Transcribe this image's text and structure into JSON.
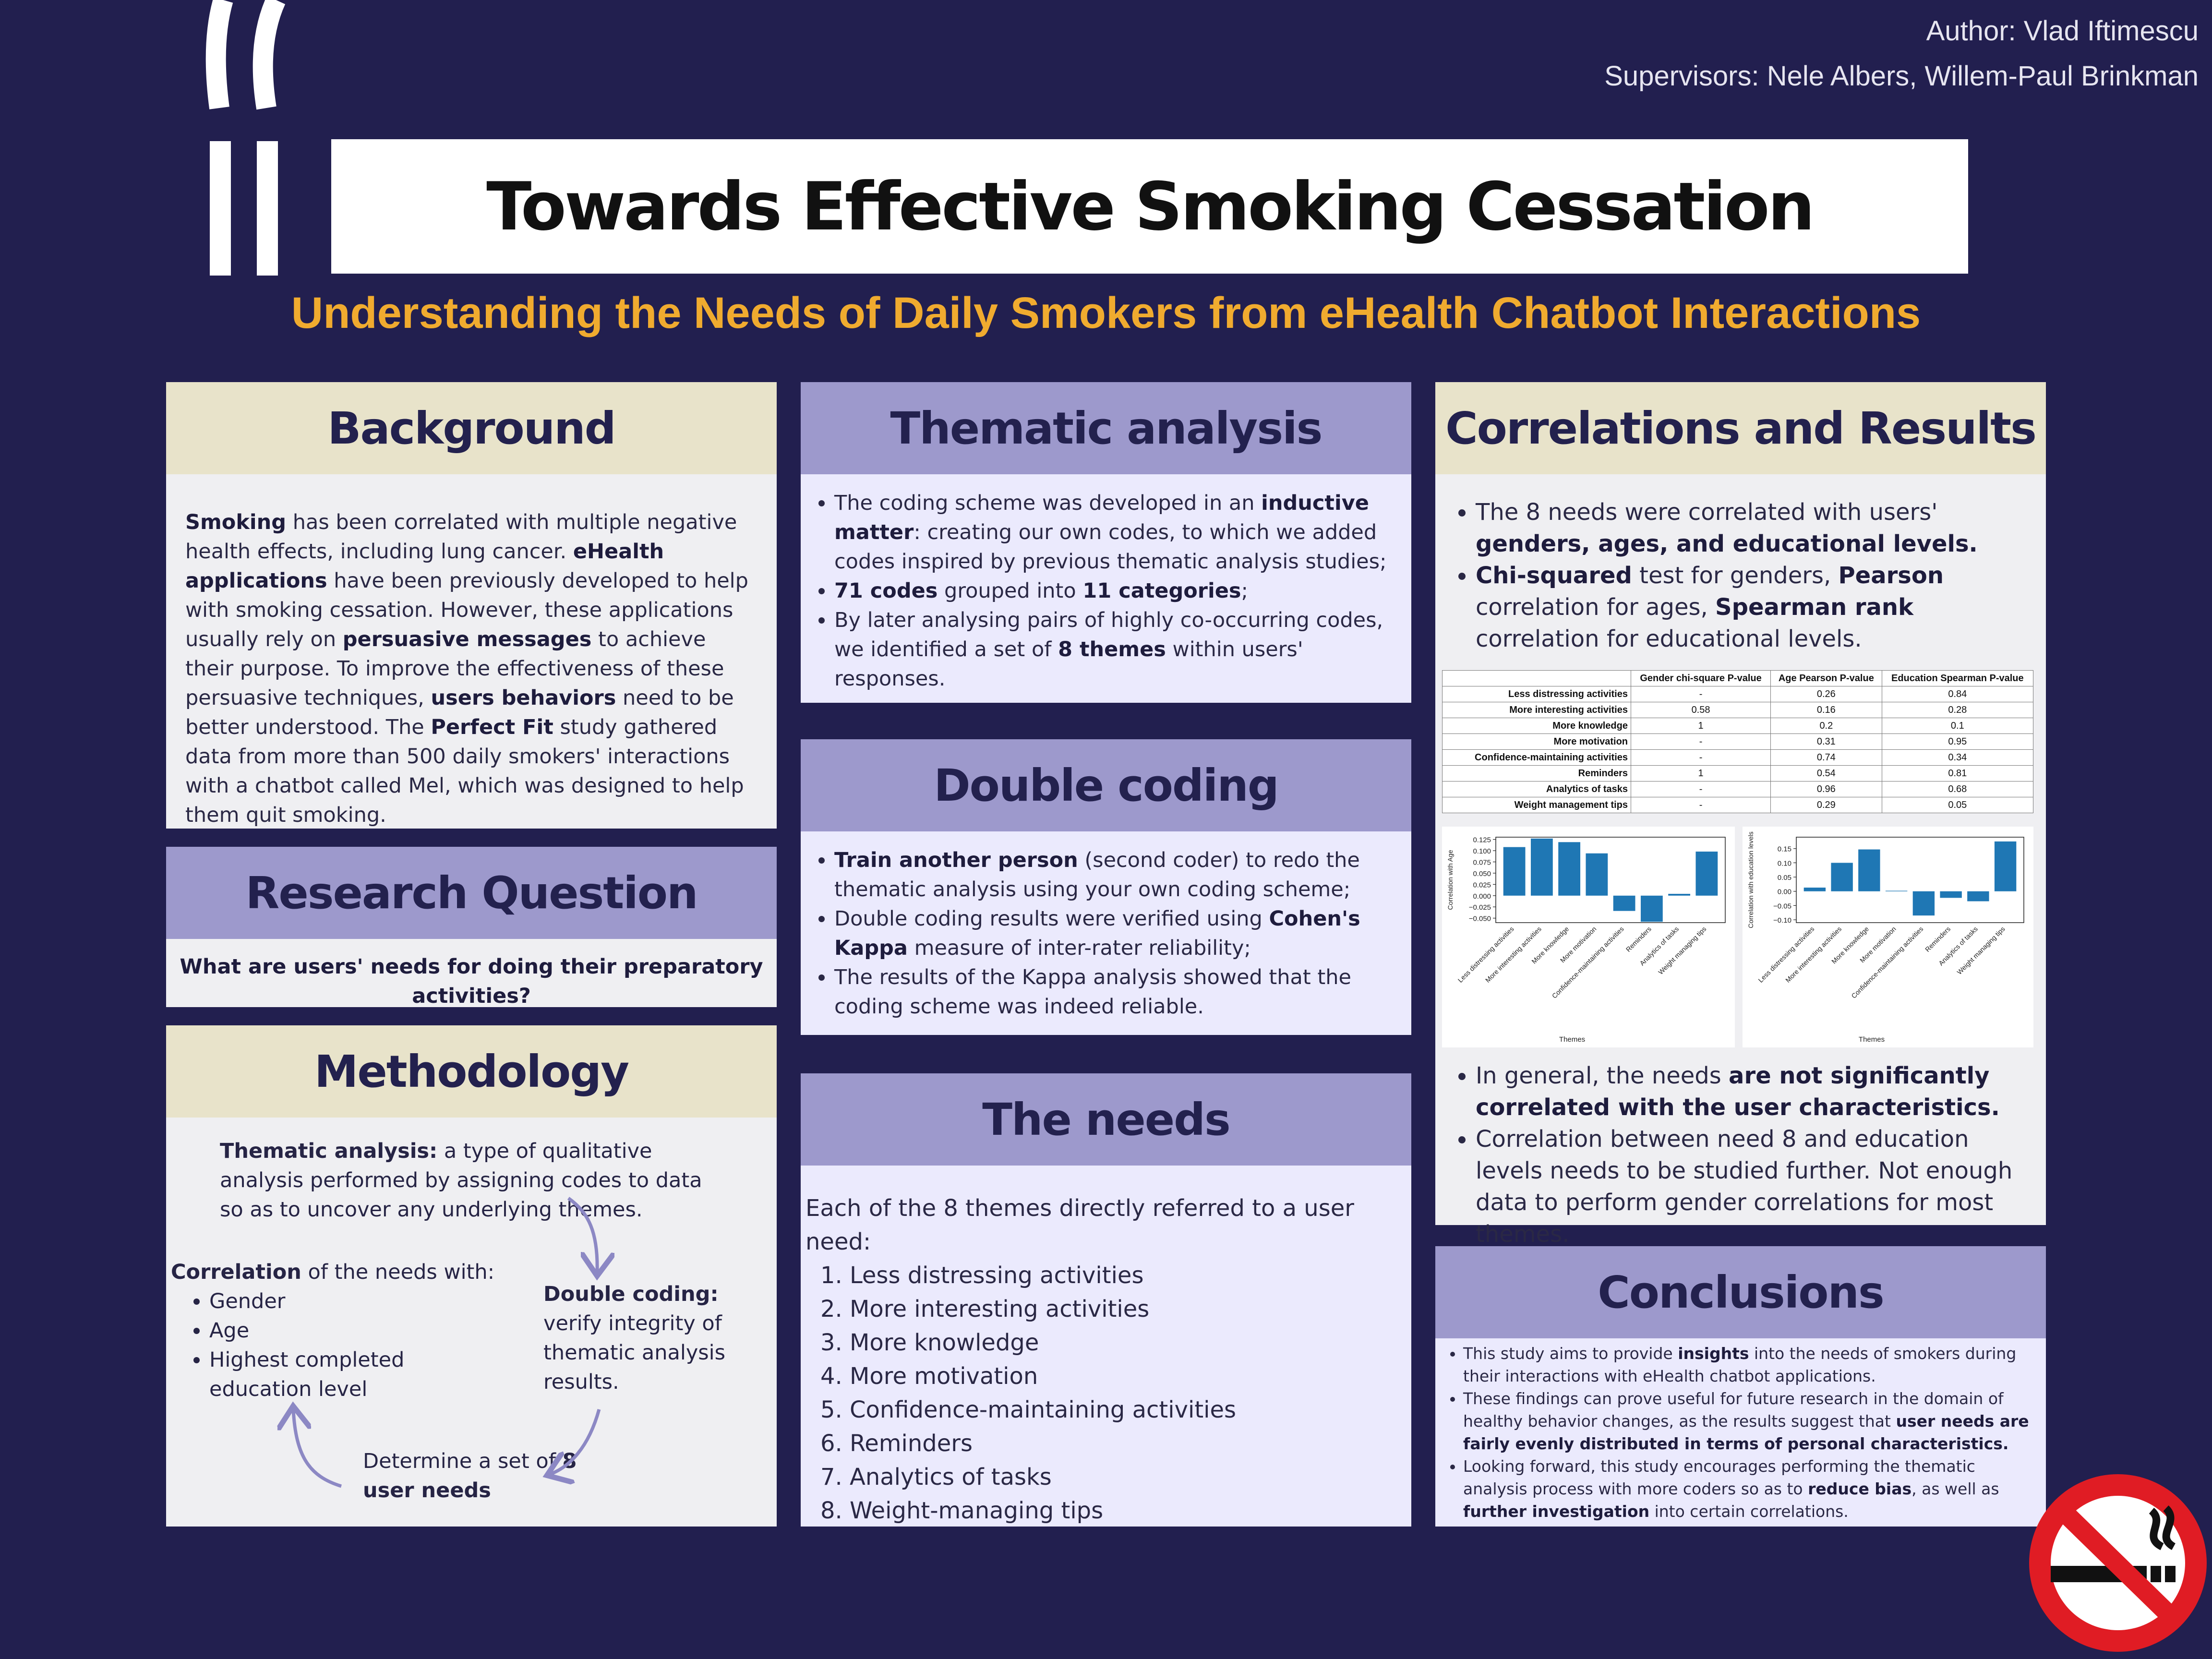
{
  "header": {
    "author": "Author: Vlad Iftimescu",
    "supervisors": "Supervisors: Nele Albers, Willem-Paul Brinkman",
    "title": "Towards Effective Smoking Cessation",
    "subtitle": "Understanding the Needs of Daily Smokers from eHealth Chatbot Interactions"
  },
  "background": {
    "heading": "Background",
    "body_html": "<b>Smoking</b> has been correlated with multiple negative health effects, including lung cancer. <b>eHealth applications</b> have been previously developed to help with smoking cessation. However, these applications usually rely on <b>persuasive messages</b> to achieve their purpose. To improve the effectiveness of these persuasive techniques, <b>users behaviors</b> need to be better understood. The <b>Perfect Fit</b> study gathered data from more than 500 daily smokers' interactions with a chatbot called Mel, which was designed to help them quit smoking."
  },
  "research": {
    "heading": "Research Question",
    "question": "What are users' needs for doing their preparatory activities?"
  },
  "methodology": {
    "heading": "Methodology",
    "thematic_html": "<b>Thematic analysis:</b> a type of qualitative analysis performed by assigning codes to data so as to uncover any underlying themes.",
    "correlation_html": "<b>Correlation</b> of the needs with:",
    "correlation_items": [
      "Gender",
      "Age",
      "Highest completed education level"
    ],
    "double_html": "<b>Double coding:</b> verify integrity of thematic analysis results.",
    "determine_html": "Determine a set of <b>8 user needs</b>"
  },
  "thematic": {
    "heading": "Thematic analysis",
    "items_html": [
      "The coding scheme was developed in an <b>inductive matter</b>: creating our own codes, to which we added codes inspired by previous thematic analysis studies;",
      "<b>71 codes</b> grouped into <b>11 categories</b>;",
      "By later analysing pairs of highly co-occurring codes, we identified a set of <b>8 themes</b> within users' responses."
    ]
  },
  "double": {
    "heading": "Double coding",
    "items_html": [
      "<b>Train another person</b> (second coder) to redo the thematic analysis using your own coding scheme;",
      "Double coding results were verified using <b>Cohen's Kappa</b> measure of inter-rater reliability;",
      "The results of the Kappa analysis showed that the coding scheme was indeed reliable."
    ]
  },
  "needs": {
    "heading": "The needs",
    "intro": "Each of the 8 themes directly referred to a user need:",
    "items": [
      "Less distressing activities",
      "More interesting activities",
      "More knowledge",
      "More motivation",
      "Confidence-maintaining activities",
      "Reminders",
      "Analytics of tasks",
      "Weight-managing tips"
    ]
  },
  "correlations": {
    "heading": "Correlations and Results",
    "items_html": [
      "The 8 needs were correlated with users' <b>genders, ages, and educational levels.</b>",
      "<b>Chi-squared</b> test for genders, <b>Pearson</b> correlation for ages, <b>Spearman rank</b> correlation for educational levels."
    ],
    "results_html": [
      "In general, the needs <b>are not significantly correlated with the user characteristics.</b>",
      "Correlation between need 8 and education levels needs to be studied further. Not enough data to perform gender correlations for most themes."
    ],
    "table": {
      "columns": [
        "",
        "Gender chi-square P-value",
        "Age Pearson P-value",
        "Education Spearman P-value"
      ],
      "rows": [
        [
          "Less distressing activities",
          "-",
          "0.26",
          "0.84"
        ],
        [
          "More interesting activities",
          "0.58",
          "0.16",
          "0.28"
        ],
        [
          "More knowledge",
          "1",
          "0.2",
          "0.1"
        ],
        [
          "More motivation",
          "-",
          "0.31",
          "0.95"
        ],
        [
          "Confidence-maintaining activities",
          "-",
          "0.74",
          "0.34"
        ],
        [
          "Reminders",
          "1",
          "0.54",
          "0.81"
        ],
        [
          "Analytics of tasks",
          "-",
          "0.96",
          "0.68"
        ],
        [
          "Weight management tips",
          "-",
          "0.29",
          "0.05"
        ]
      ]
    }
  },
  "conclusions": {
    "heading": "Conclusions",
    "items_html": [
      "This study aims to provide <b>insights</b> into the needs of smokers during their interactions with eHealth chatbot applications.",
      "These findings can prove useful for future research in the domain of healthy behavior changes, as the results suggest that <b>user needs are fairly evenly distributed in terms of personal characteristics.</b>",
      "Looking forward, this study encourages performing the thematic analysis process with more coders so as to <b>reduce bias</b>, as well as <b>further investigation</b> into certain correlations."
    ]
  },
  "colors": {
    "background": "#221f4f",
    "accent": "#f0ab2f",
    "bar": "#1f77b4",
    "header_beige": "#e8e3ca",
    "header_purple": "#9d99cc"
  },
  "chart_data": [
    {
      "type": "bar",
      "categories": [
        "Less distressing activities",
        "More interesting activities",
        "More knowledge",
        "More motivation",
        "Confidence-maintaining activities",
        "Reminders",
        "Analytics of tasks",
        "Weight managing tips"
      ],
      "values": [
        0.108,
        0.127,
        0.119,
        0.094,
        -0.034,
        -0.058,
        0.004,
        0.098
      ],
      "ylabel": "Correlation with Age",
      "xlabel": "Themes",
      "ylim": [
        -0.06,
        0.13
      ],
      "yticks": [
        "0.125",
        "0.100",
        "0.075",
        "0.050",
        "0.025",
        "0.000",
        "−0.025",
        "−0.050"
      ],
      "tick_values": [
        0.125,
        0.1,
        0.075,
        0.05,
        0.025,
        0,
        -0.025,
        -0.05
      ]
    },
    {
      "type": "bar",
      "categories": [
        "Less distressing activities",
        "More interesting activities",
        "More knowledge",
        "More motivation",
        "Confidence-maintaining activities",
        "Reminders",
        "Analytics of tasks",
        "Weight managing tips"
      ],
      "values": [
        0.013,
        0.1,
        0.147,
        0.002,
        -0.085,
        -0.023,
        -0.035,
        0.175
      ],
      "ylabel": "Correlation with education levels",
      "xlabel": "Themes",
      "ylim": [
        -0.11,
        0.19
      ],
      "yticks": [
        "0.15",
        "0.10",
        "0.05",
        "0.00",
        "−0.05",
        "−0.10"
      ],
      "tick_values": [
        0.15,
        0.1,
        0.05,
        0,
        -0.05,
        -0.1
      ]
    }
  ]
}
